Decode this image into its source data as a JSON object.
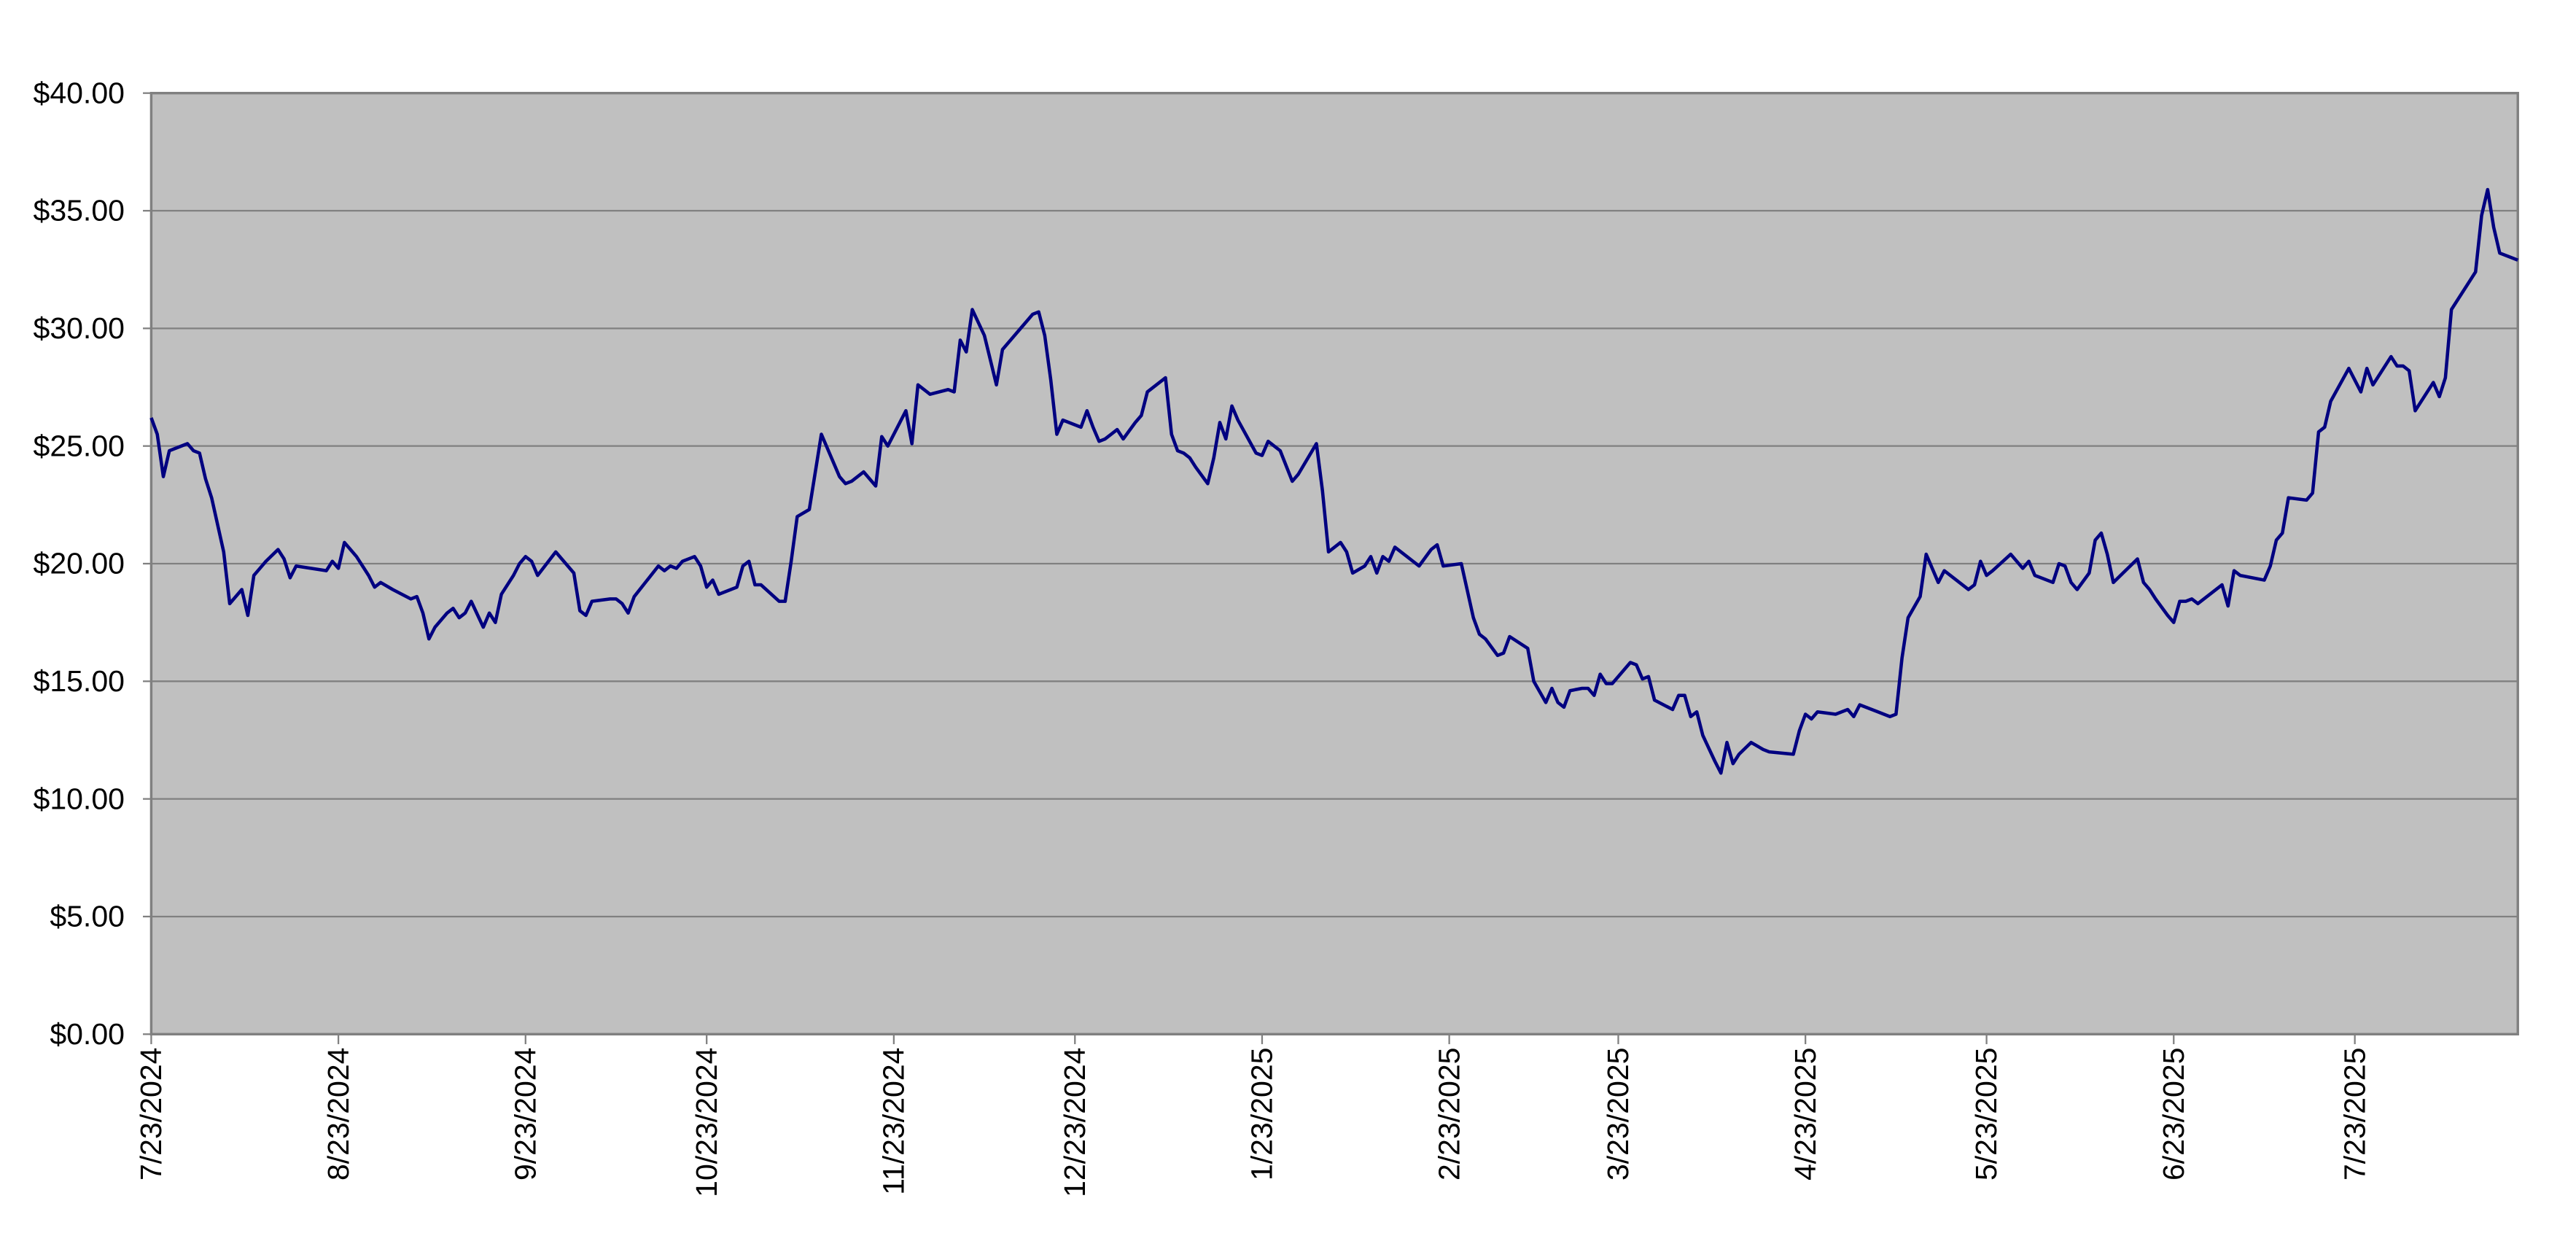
{
  "chart_data": {
    "type": "line",
    "color": "#000080",
    "grid": true,
    "plot_background": "#c0c0c0",
    "xlim": [
      "7/23/2024",
      "8/19/2025"
    ],
    "xticks": [
      "7/23/2024",
      "8/23/2024",
      "9/23/2024",
      "10/23/2024",
      "11/23/2024",
      "12/23/2024",
      "1/23/2025",
      "2/23/2025",
      "3/23/2025",
      "4/23/2025",
      "5/23/2025",
      "6/23/2025",
      "7/23/2025"
    ],
    "ylim": [
      0,
      40
    ],
    "yticks": [
      {
        "value": 0,
        "label": "$0.00"
      },
      {
        "value": 5,
        "label": "$5.00"
      },
      {
        "value": 10,
        "label": "$10.00"
      },
      {
        "value": 15,
        "label": "$15.00"
      },
      {
        "value": 20,
        "label": "$20.00"
      },
      {
        "value": 25,
        "label": "$25.00"
      },
      {
        "value": 30,
        "label": "$30.00"
      },
      {
        "value": 35,
        "label": "$35.00"
      },
      {
        "value": 40,
        "label": "$40.00"
      }
    ],
    "x": [
      "7/23/2024",
      "7/24/2024",
      "7/25/2024",
      "7/26/2024",
      "7/29/2024",
      "7/30/2024",
      "7/31/2024",
      "8/1/2024",
      "8/2/2024",
      "8/4/2024",
      "8/5/2024",
      "8/7/2024",
      "8/8/2024",
      "8/9/2024",
      "8/10/2024",
      "8/11/2024",
      "8/13/2024",
      "8/14/2024",
      "8/15/2024",
      "8/16/2024",
      "8/21/2024",
      "8/22/2024",
      "8/23/2024",
      "8/24/2024",
      "8/25/2024",
      "8/26/2024",
      "8/28/2024",
      "8/29/2024",
      "8/30/2024",
      "9/1/2024",
      "9/4/2024",
      "9/5/2024",
      "9/6/2024",
      "9/7/2024",
      "9/8/2024",
      "9/10/2024",
      "9/11/2024",
      "9/12/2024",
      "9/13/2024",
      "9/14/2024",
      "9/16/2024",
      "9/17/2024",
      "9/18/2024",
      "9/19/2024",
      "9/21/2024",
      "9/22/2024",
      "9/23/2024",
      "9/24/2024",
      "9/25/2024",
      "9/28/2024",
      "10/1/2024",
      "10/2/2024",
      "10/3/2024",
      "10/4/2024",
      "10/7/2024",
      "10/8/2024",
      "10/9/2024",
      "10/10/2024",
      "10/11/2024",
      "10/15/2024",
      "10/16/2024",
      "10/17/2024",
      "10/18/2024",
      "10/19/2024",
      "10/21/2024",
      "10/22/2024",
      "10/23/2024",
      "10/24/2024",
      "10/25/2024",
      "10/28/2024",
      "10/29/2024",
      "10/30/2024",
      "10/31/2024",
      "11/1/2024",
      "11/4/2024",
      "11/5/2024",
      "11/6/2024",
      "11/7/2024",
      "11/9/2024",
      "11/11/2024",
      "11/12/2024",
      "11/14/2024",
      "11/15/2024",
      "11/16/2024",
      "11/18/2024",
      "11/20/2024",
      "11/21/2024",
      "11/22/2024",
      "11/25/2024",
      "11/26/2024",
      "11/27/2024",
      "11/29/2024",
      "12/2/2024",
      "12/3/2024",
      "12/4/2024",
      "12/5/2024",
      "12/6/2024",
      "12/8/2024",
      "12/10/2024",
      "12/11/2024",
      "12/16/2024",
      "12/17/2024",
      "12/18/2024",
      "12/19/2024",
      "12/20/2024",
      "12/21/2024",
      "12/24/2024",
      "12/25/2024",
      "12/26/2024",
      "12/27/2024",
      "12/28/2024",
      "12/30/2024",
      "12/31/2024",
      "1/2/2025",
      "1/3/2025",
      "1/4/2025",
      "1/7/2025",
      "1/8/2025",
      "1/9/2025",
      "1/10/2025",
      "1/11/2025",
      "1/12/2025",
      "1/14/2025",
      "1/15/2025",
      "1/16/2025",
      "1/17/2025",
      "1/18/2025",
      "1/19/2025",
      "1/22/2025",
      "1/23/2025",
      "1/24/2025",
      "1/26/2025",
      "1/28/2025",
      "1/29/2025",
      "2/1/2025",
      "2/2/2025",
      "2/3/2025",
      "2/5/2025",
      "2/6/2025",
      "2/7/2025",
      "2/9/2025",
      "2/10/2025",
      "2/11/2025",
      "2/12/2025",
      "2/13/2025",
      "2/14/2025",
      "2/17/2025",
      "2/18/2025",
      "2/20/2025",
      "2/21/2025",
      "2/22/2025",
      "2/25/2025",
      "2/27/2025",
      "2/28/2025",
      "3/1/2025",
      "3/3/2025",
      "3/4/2025",
      "3/5/2025",
      "3/8/2025",
      "3/9/2025",
      "3/11/2025",
      "3/12/2025",
      "3/13/2025",
      "3/14/2025",
      "3/15/2025",
      "3/17/2025",
      "3/18/2025",
      "3/19/2025",
      "3/20/2025",
      "3/21/2025",
      "3/22/2025",
      "3/25/2025",
      "3/26/2025",
      "3/27/2025",
      "3/28/2025",
      "3/29/2025",
      "4/1/2025",
      "4/2/2025",
      "4/3/2025",
      "4/4/2025",
      "4/5/2025",
      "4/6/2025",
      "4/8/2025",
      "4/9/2025",
      "4/10/2025",
      "4/11/2025",
      "4/12/2025",
      "4/14/2025",
      "4/16/2025",
      "4/17/2025",
      "4/21/2025",
      "4/22/2025",
      "4/23/2025",
      "4/24/2025",
      "4/25/2025",
      "4/28/2025",
      "4/30/2025",
      "5/1/2025",
      "5/2/2025",
      "5/5/2025",
      "5/7/2025",
      "5/8/2025",
      "5/9/2025",
      "5/10/2025",
      "5/12/2025",
      "5/13/2025",
      "5/14/2025",
      "5/15/2025",
      "5/16/2025",
      "5/20/2025",
      "5/21/2025",
      "5/22/2025",
      "5/23/2025",
      "5/24/2025",
      "5/27/2025",
      "5/29/2025",
      "5/30/2025",
      "5/31/2025",
      "6/3/2025",
      "6/4/2025",
      "6/5/2025",
      "6/6/2025",
      "6/7/2025",
      "6/9/2025",
      "6/10/2025",
      "6/11/2025",
      "6/12/2025",
      "6/13/2025",
      "6/17/2025",
      "6/18/2025",
      "6/19/2025",
      "6/20/2025",
      "6/22/2025",
      "6/23/2025",
      "6/24/2025",
      "6/25/2025",
      "6/26/2025",
      "6/27/2025",
      "7/1/2025",
      "7/2/2025",
      "7/3/2025",
      "7/4/2025",
      "7/8/2025",
      "7/9/2025",
      "7/10/2025",
      "7/11/2025",
      "7/12/2025",
      "7/15/2025",
      "7/16/2025",
      "7/17/2025",
      "7/18/2025",
      "7/19/2025",
      "7/22/2025",
      "7/23/2025",
      "7/24/2025",
      "7/25/2025",
      "7/26/2025",
      "7/29/2025",
      "7/30/2025",
      "7/31/2025",
      "8/1/2025",
      "8/2/2025",
      "8/5/2025",
      "8/6/2025",
      "8/7/2025",
      "8/8/2025",
      "8/12/2025",
      "8/13/2025",
      "8/14/2025",
      "8/15/2025",
      "8/16/2025",
      "8/18/2025",
      "8/19/2025"
    ],
    "values": [
      26.2,
      25.5,
      23.7,
      24.8,
      25.1,
      24.8,
      24.7,
      23.6,
      22.8,
      20.5,
      18.3,
      18.9,
      17.8,
      19.5,
      19.8,
      20.1,
      20.6,
      20.2,
      19.4,
      19.9,
      19.7,
      20.1,
      19.8,
      20.9,
      20.6,
      20.3,
      19.5,
      19.0,
      19.2,
      18.9,
      18.5,
      18.6,
      17.9,
      16.8,
      17.3,
      17.9,
      18.1,
      17.7,
      17.9,
      18.4,
      17.3,
      17.9,
      17.5,
      18.7,
      19.5,
      20.0,
      20.3,
      20.1,
      19.5,
      20.5,
      19.6,
      18.0,
      17.8,
      18.4,
      18.5,
      18.5,
      18.3,
      17.9,
      18.6,
      19.9,
      19.7,
      19.9,
      19.8,
      20.1,
      20.3,
      19.9,
      19.0,
      19.3,
      18.7,
      19.0,
      19.9,
      20.1,
      19.1,
      19.1,
      18.4,
      18.4,
      20.1,
      22.0,
      22.3,
      25.5,
      24.9,
      23.7,
      23.4,
      23.5,
      23.9,
      23.3,
      25.4,
      25.0,
      26.5,
      25.1,
      27.6,
      27.2,
      27.4,
      27.3,
      29.5,
      29.0,
      30.8,
      29.7,
      27.6,
      29.1,
      30.6,
      30.7,
      29.7,
      27.8,
      25.5,
      26.1,
      25.8,
      26.5,
      25.8,
      25.2,
      25.3,
      25.7,
      25.3,
      26.0,
      26.3,
      27.3,
      27.9,
      25.5,
      24.8,
      24.7,
      24.5,
      24.1,
      23.4,
      24.5,
      26.0,
      25.3,
      26.7,
      26.1,
      24.7,
      24.6,
      25.2,
      24.8,
      23.5,
      23.8,
      25.1,
      23.1,
      20.5,
      20.9,
      20.5,
      19.6,
      19.9,
      20.3,
      19.6,
      20.3,
      20.1,
      20.7,
      20.1,
      19.9,
      20.6,
      20.8,
      19.9,
      20.0,
      17.7,
      17.0,
      16.8,
      16.1,
      16.2,
      16.9,
      16.4,
      15.0,
      14.1,
      14.7,
      14.1,
      13.9,
      14.6,
      14.7,
      14.7,
      14.4,
      15.3,
      14.9,
      14.9,
      15.8,
      15.7,
      15.1,
      15.2,
      14.2,
      13.8,
      14.4,
      14.4,
      13.5,
      13.7,
      12.7,
      11.6,
      11.1,
      12.4,
      11.5,
      11.9,
      12.4,
      12.1,
      12.0,
      11.9,
      12.9,
      13.6,
      13.4,
      13.7,
      13.6,
      13.8,
      13.5,
      14.0,
      13.7,
      13.5,
      13.6,
      16.0,
      17.7,
      18.6,
      20.4,
      19.8,
      19.2,
      19.7,
      18.9,
      19.1,
      20.1,
      19.5,
      19.7,
      20.4,
      19.8,
      20.1,
      19.5,
      19.2,
      20.0,
      19.9,
      19.2,
      18.9,
      19.6,
      21.0,
      21.3,
      20.4,
      19.2,
      20.2,
      19.2,
      18.9,
      18.5,
      17.8,
      17.5,
      18.4,
      18.4,
      18.5,
      18.3,
      19.1,
      18.2,
      19.7,
      19.5,
      19.3,
      19.9,
      21.0,
      21.3,
      22.8,
      22.7,
      23.0,
      25.6,
      25.8,
      26.9,
      28.3,
      27.8,
      27.3,
      28.3,
      27.6,
      28.8,
      28.4,
      28.4,
      28.2,
      26.5,
      27.7,
      27.1,
      27.9,
      30.8,
      32.4,
      34.8,
      35.9,
      34.3,
      33.2,
      33.0,
      32.9
    ]
  }
}
